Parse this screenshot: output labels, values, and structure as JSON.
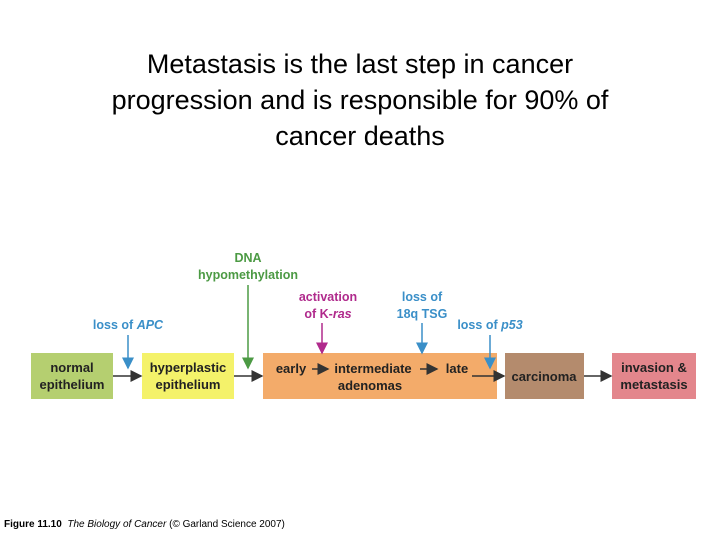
{
  "title": {
    "line1": "Metastasis is the last step in cancer",
    "line2": "progression and is responsible for 90% of",
    "line3": "cancer deaths"
  },
  "diagram": {
    "boxes": {
      "normal": {
        "line1": "normal",
        "line2": "epithelium",
        "color": "#b5cf70"
      },
      "hyperplastic": {
        "line1": "hyperplastic",
        "line2": "epithelium",
        "color": "#f4f26a"
      },
      "adenomas": {
        "early": "early",
        "intermediate": "intermediate",
        "late": "late",
        "line2": "adenomas",
        "color": "#f3ab6a"
      },
      "carcinoma": {
        "label": "carcinoma",
        "color": "#b48b6d"
      },
      "invasion": {
        "line1": "invasion &",
        "line2": "metastasis",
        "color": "#e3868c"
      }
    },
    "labels": {
      "loss_apc_prefix": "loss of",
      "loss_apc_gene": "APC",
      "dna_line1": "DNA",
      "dna_line2": "hypomethylation",
      "kras_line1": "activation",
      "kras_prefix": "of K-",
      "kras_gene": "ras",
      "tsg_line1": "loss of",
      "tsg_line2": "18q TSG",
      "p53_prefix": "loss of",
      "p53_gene": "p53"
    },
    "colors": {
      "blue_label": "#3a8fc8",
      "green_label": "#4c9a44",
      "magenta_label": "#b02a8c",
      "arrow": "#333333"
    }
  },
  "caption": {
    "figure": "Figure 11.10",
    "book": "The Biology of Cancer",
    "credit": "(© Garland Science 2007)"
  }
}
